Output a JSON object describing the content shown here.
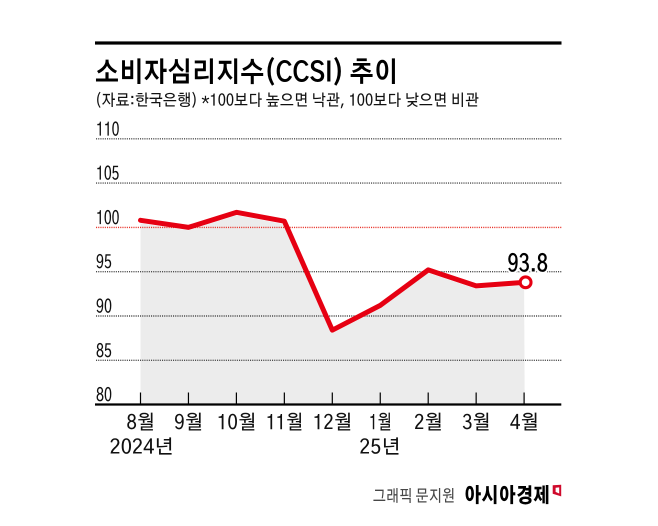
{
  "page": {
    "background": "#ffffff"
  },
  "header": {
    "title": "소비자심리지수(CCSI) 추이",
    "subtitle": "(자료:한국은행) *100보다 높으면 낙관, 100보다 낮으면 비관"
  },
  "chart_data": {
    "type": "line",
    "title": "소비자심리지수(CCSI) 추이",
    "source_note": "(자료:한국은행) *100보다 높으면 낙관, 100보다 낮으면 비관",
    "categories": [
      "8월",
      "9월",
      "10월",
      "11월",
      "12월",
      "1월",
      "2월",
      "3월",
      "4월"
    ],
    "x_period_labels": [
      {
        "index": 0,
        "label": "2024년"
      },
      {
        "index": 5,
        "label": "25년"
      }
    ],
    "series": [
      {
        "name": "소비자심리지수(CCSI)",
        "values": [
          100.8,
          100.0,
          101.7,
          100.7,
          88.4,
          91.2,
          95.2,
          93.4,
          93.8
        ]
      }
    ],
    "ylim": [
      80,
      110
    ],
    "yticks": [
      80,
      85,
      90,
      95,
      100,
      105,
      110
    ],
    "threshold": 100,
    "area_fill": "under-line",
    "last_value_label": "93.8",
    "grid": "dotted",
    "legend": "none",
    "colors": {
      "line": "#e60012",
      "threshold_line": "#e8332a",
      "shade": "#ececec",
      "grid": "#4c4c4c",
      "axis": "#000000"
    }
  },
  "footer": {
    "credit": "그래픽 문지원",
    "brand": "아시아경제",
    "brand_mark": "red-flag-icon"
  }
}
